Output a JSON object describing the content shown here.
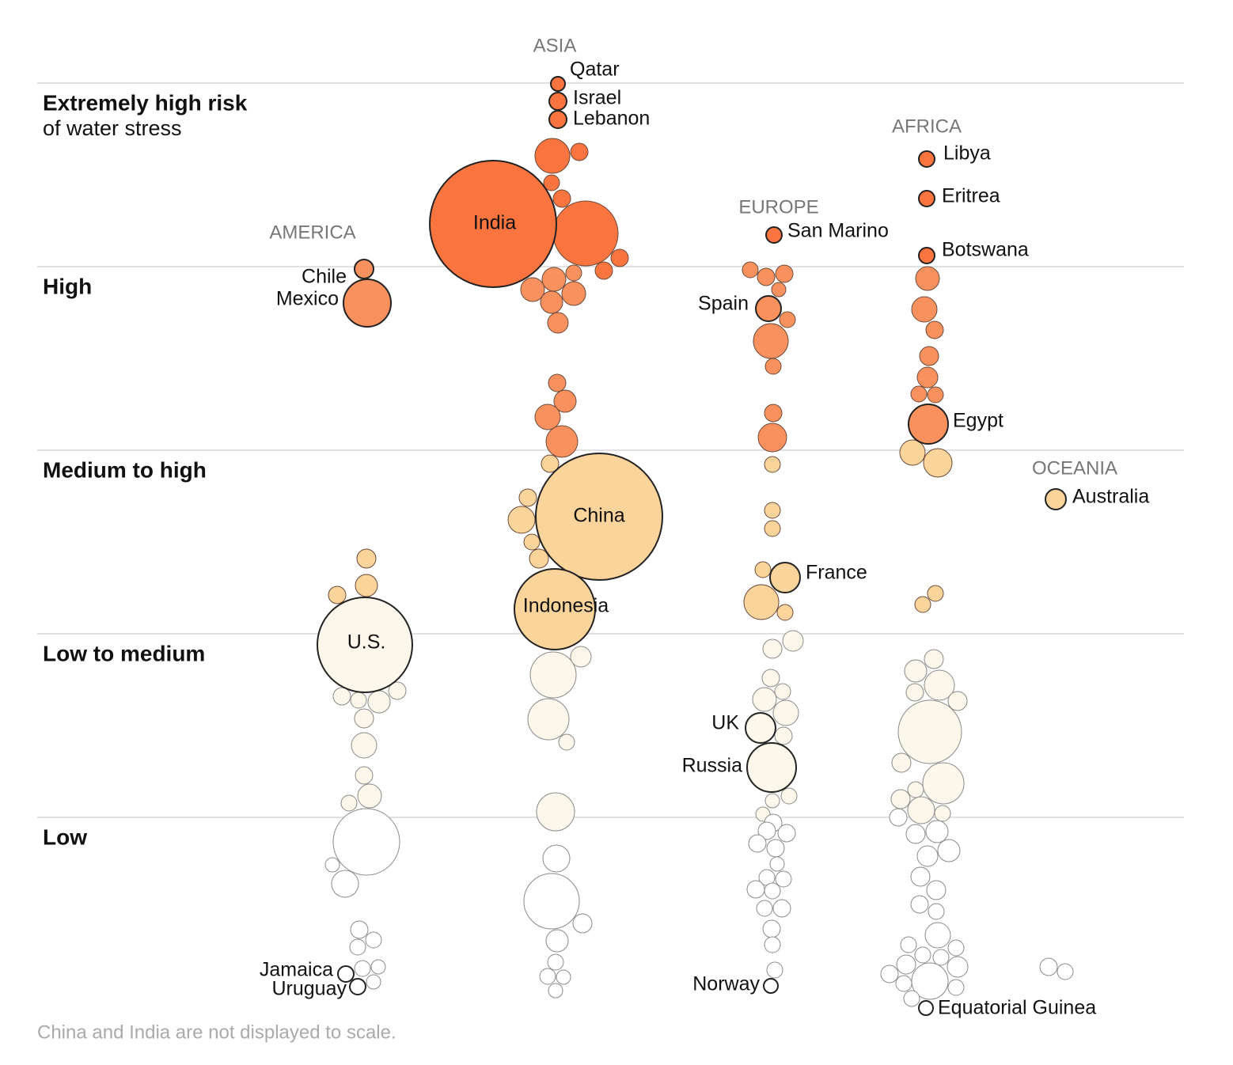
{
  "chart_data": {
    "type": "bubble",
    "risk_levels": [
      {
        "key": "extreme",
        "label": "Extremely high risk",
        "sublabel": "of water stress",
        "color": "#f9743f"
      },
      {
        "key": "high",
        "label": "High",
        "color": "#f8915e"
      },
      {
        "key": "medhigh",
        "label": "Medium to high",
        "color": "#fbd49b"
      },
      {
        "key": "lowmed",
        "label": "Low to medium",
        "color": "#fdf6ea"
      },
      {
        "key": "low",
        "label": "Low",
        "color": "#ffffff"
      }
    ],
    "regions": [
      "ASIA",
      "AMERICA",
      "EUROPE",
      "AFRICA",
      "OCEANIA"
    ],
    "labeled_countries": [
      {
        "name": "Qatar",
        "region": "ASIA",
        "risk": "extreme"
      },
      {
        "name": "Israel",
        "region": "ASIA",
        "risk": "extreme"
      },
      {
        "name": "Lebanon",
        "region": "ASIA",
        "risk": "extreme"
      },
      {
        "name": "India",
        "region": "ASIA",
        "risk": "extreme"
      },
      {
        "name": "China",
        "region": "ASIA",
        "risk": "medhigh"
      },
      {
        "name": "Indonesia",
        "region": "ASIA",
        "risk": "medhigh"
      },
      {
        "name": "Chile",
        "region": "AMERICA",
        "risk": "high"
      },
      {
        "name": "Mexico",
        "region": "AMERICA",
        "risk": "high"
      },
      {
        "name": "U.S.",
        "region": "AMERICA",
        "risk": "lowmed"
      },
      {
        "name": "Jamaica",
        "region": "AMERICA",
        "risk": "low"
      },
      {
        "name": "Uruguay",
        "region": "AMERICA",
        "risk": "low"
      },
      {
        "name": "San Marino",
        "region": "EUROPE",
        "risk": "extreme"
      },
      {
        "name": "Spain",
        "region": "EUROPE",
        "risk": "high"
      },
      {
        "name": "France",
        "region": "EUROPE",
        "risk": "medhigh"
      },
      {
        "name": "UK",
        "region": "EUROPE",
        "risk": "lowmed"
      },
      {
        "name": "Russia",
        "region": "EUROPE",
        "risk": "lowmed"
      },
      {
        "name": "Norway",
        "region": "EUROPE",
        "risk": "low"
      },
      {
        "name": "Libya",
        "region": "AFRICA",
        "risk": "extreme"
      },
      {
        "name": "Eritrea",
        "region": "AFRICA",
        "risk": "extreme"
      },
      {
        "name": "Botswana",
        "region": "AFRICA",
        "risk": "extreme"
      },
      {
        "name": "Egypt",
        "region": "AFRICA",
        "risk": "high"
      },
      {
        "name": "Equatorial Guinea",
        "region": "AFRICA",
        "risk": "low"
      },
      {
        "name": "Australia",
        "region": "OCEANIA",
        "risk": "medhigh"
      }
    ],
    "footnote": "China and India are not displayed to scale."
  }
}
